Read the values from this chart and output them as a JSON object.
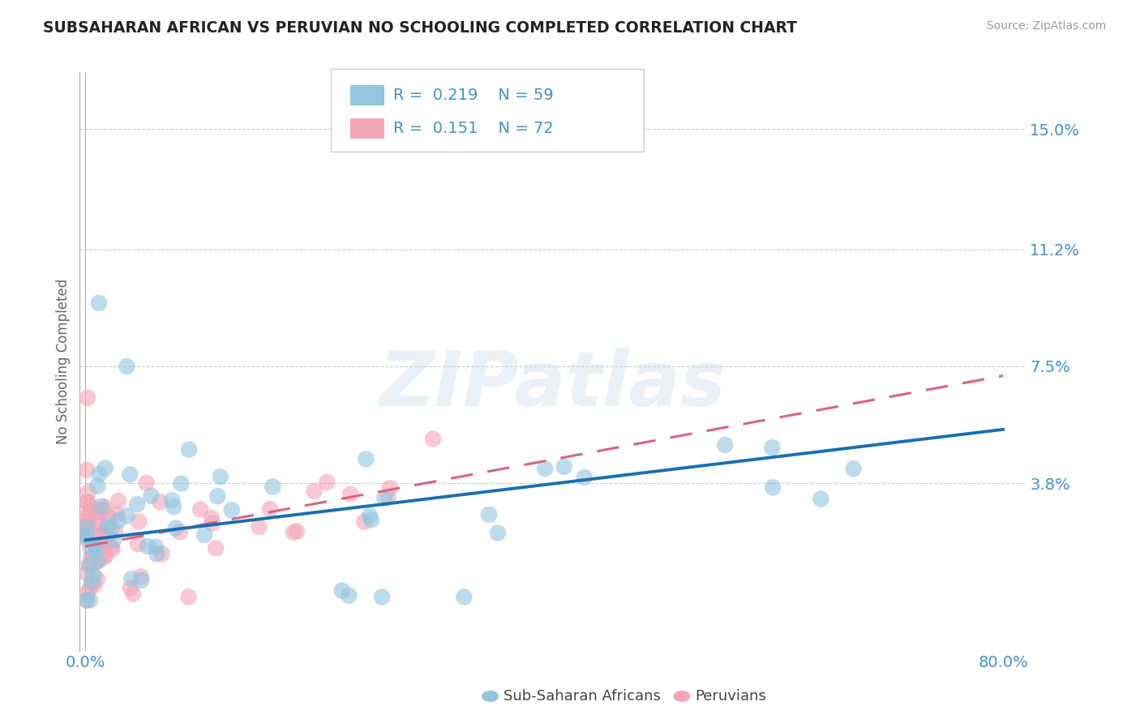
{
  "title": "SUBSAHARAN AFRICAN VS PERUVIAN NO SCHOOLING COMPLETED CORRELATION CHART",
  "source": "Source: ZipAtlas.com",
  "ylabel": "No Schooling Completed",
  "xlim": [
    0.0,
    0.82
  ],
  "ylim": [
    -0.015,
    0.168
  ],
  "ytick_vals": [
    0.038,
    0.075,
    0.112,
    0.15
  ],
  "ytick_labels": [
    "3.8%",
    "7.5%",
    "11.2%",
    "15.0%"
  ],
  "xtick_vals": [
    0.0,
    0.8
  ],
  "xtick_labels": [
    "0.0%",
    "80.0%"
  ],
  "legend_r1": "0.219",
  "legend_n1": "59",
  "legend_r2": "0.151",
  "legend_n2": "72",
  "color_blue": "#92c5de",
  "color_pink": "#f4a6b8",
  "color_blue_line": "#1a6faf",
  "color_pink_line": "#d9647e",
  "color_text_blue": "#4292c6",
  "series1_label": "Sub-Saharan Africans",
  "series2_label": "Peruvians",
  "blue_trend_start": 0.02,
  "blue_trend_end": 0.055,
  "pink_trend_start": 0.018,
  "pink_trend_end": 0.072,
  "watermark_text": "ZIPatlas",
  "grid_color": "#cccccc",
  "spine_color": "#aaaaaa"
}
